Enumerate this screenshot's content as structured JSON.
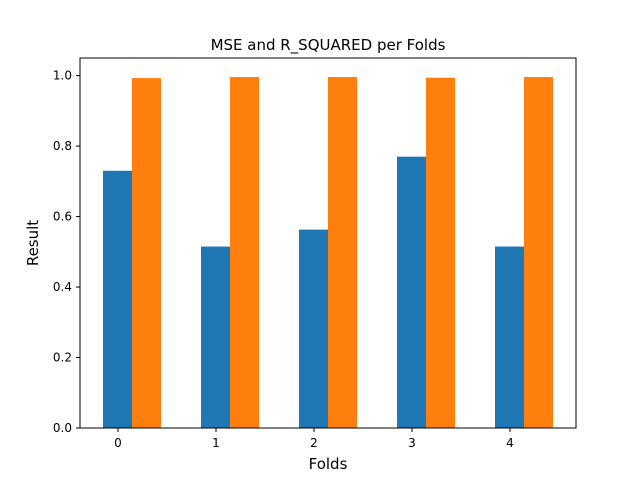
{
  "chart_data": {
    "type": "bar",
    "title": "MSE and R_SQUARED per Folds",
    "xlabel": "Folds",
    "ylabel": "Result",
    "categories": [
      "0",
      "1",
      "2",
      "3",
      "4"
    ],
    "series": [
      {
        "values": [
          0.73,
          0.515,
          0.563,
          0.77,
          0.515
        ],
        "color": "#1f77b4"
      },
      {
        "values": [
          0.993,
          0.996,
          0.996,
          0.994,
          0.996
        ],
        "color": "#ff7f0e"
      }
    ],
    "ylim": [
      0,
      1.05
    ],
    "yticks": [
      "0.0",
      "0.2",
      "0.4",
      "0.6",
      "0.8",
      "1.0"
    ],
    "grid": false,
    "legend": "none"
  }
}
